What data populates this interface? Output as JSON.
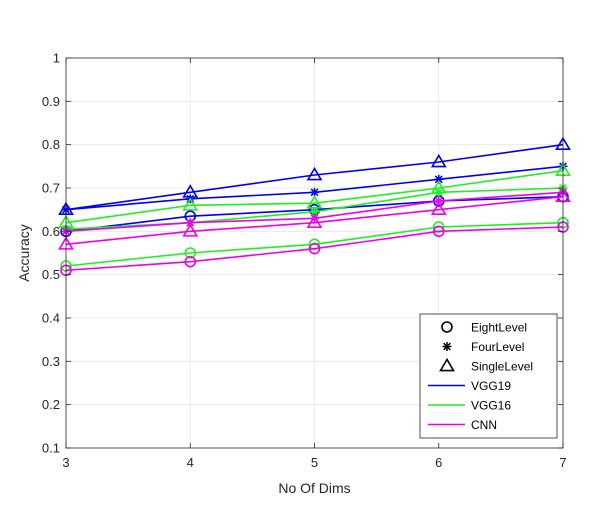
{
  "chart_data": {
    "type": "line",
    "xlabel": "No Of Dims",
    "ylabel": "Accuracy",
    "x": [
      3,
      4,
      5,
      6,
      7
    ],
    "xlim": [
      3,
      7
    ],
    "ylim": [
      0.1,
      1
    ],
    "xticks": [
      "3",
      "4",
      "5",
      "6",
      "7"
    ],
    "yticks": [
      "0.1",
      "0.2",
      "0.3",
      "0.4",
      "0.5",
      "0.6",
      "0.7",
      "0.8",
      "0.9",
      "1"
    ],
    "grid": true,
    "legend_position": "bottom-right",
    "legend": [
      {
        "label": "EightLevel",
        "kind": "marker",
        "marker": "circle"
      },
      {
        "label": "FourLevel",
        "kind": "marker",
        "marker": "asterisk"
      },
      {
        "label": "SingleLevel",
        "kind": "marker",
        "marker": "triangle"
      },
      {
        "label": "VGG19",
        "kind": "line",
        "color": "#0000ee"
      },
      {
        "label": "VGG16",
        "kind": "line",
        "color": "#22ee22"
      },
      {
        "label": "CNN",
        "kind": "line",
        "color": "#ee00ee"
      }
    ],
    "series": [
      {
        "model": "VGG19",
        "level": "SingleLevel",
        "color": "#0000ee",
        "marker": "triangle",
        "values": [
          0.65,
          0.69,
          0.73,
          0.76,
          0.8
        ]
      },
      {
        "model": "VGG19",
        "level": "FourLevel",
        "color": "#0000ee",
        "marker": "asterisk",
        "values": [
          0.65,
          0.675,
          0.69,
          0.72,
          0.75
        ]
      },
      {
        "model": "VGG19",
        "level": "EightLevel",
        "color": "#0000ee",
        "marker": "circle",
        "values": [
          0.6,
          0.635,
          0.65,
          0.67,
          0.68
        ]
      },
      {
        "model": "VGG16",
        "level": "SingleLevel",
        "color": "#22ee22",
        "marker": "triangle",
        "values": [
          0.62,
          0.66,
          0.665,
          0.7,
          0.74
        ]
      },
      {
        "model": "VGG16",
        "level": "FourLevel",
        "color": "#22ee22",
        "marker": "asterisk",
        "values": [
          0.605,
          0.62,
          0.645,
          0.69,
          0.7
        ]
      },
      {
        "model": "VGG16",
        "level": "EightLevel",
        "color": "#22ee22",
        "marker": "circle",
        "values": [
          0.52,
          0.55,
          0.57,
          0.61,
          0.62
        ]
      },
      {
        "model": "CNN",
        "level": "FourLevel",
        "color": "#ee00ee",
        "marker": "asterisk",
        "values": [
          0.6,
          0.62,
          0.63,
          0.67,
          0.69
        ]
      },
      {
        "model": "CNN",
        "level": "SingleLevel",
        "color": "#ee00ee",
        "marker": "triangle",
        "values": [
          0.57,
          0.6,
          0.62,
          0.65,
          0.68
        ]
      },
      {
        "model": "CNN",
        "level": "EightLevel",
        "color": "#ee00ee",
        "marker": "circle",
        "values": [
          0.51,
          0.53,
          0.56,
          0.6,
          0.61
        ]
      }
    ]
  }
}
